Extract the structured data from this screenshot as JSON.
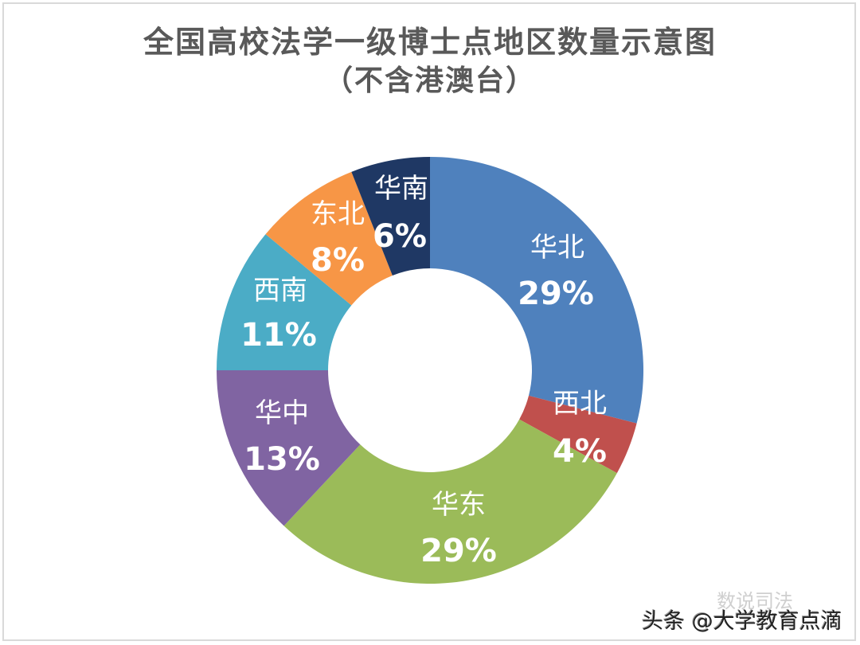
{
  "chart_data": {
    "type": "pie",
    "subtype": "donut",
    "title": "全国高校法学一级博士点地区数量示意图",
    "subtitle": "（不含港澳台）",
    "categories": [
      "华北",
      "西北",
      "华东",
      "华中",
      "西南",
      "东北",
      "华南"
    ],
    "values": [
      29,
      4,
      29,
      13,
      11,
      8,
      6
    ],
    "unit": "%",
    "colors": [
      "#4f81bd",
      "#c0504d",
      "#9bbb59",
      "#8064a2",
      "#4bacc6",
      "#f79646",
      "#1f3864"
    ],
    "start_angle": "12 o'clock, clockwise",
    "legend": "none (labels inside segments)"
  },
  "header": {
    "title": "全国高校法学一级博士点地区数量示意图",
    "subtitle": "（不含港澳台）"
  },
  "labels": [
    {
      "name": "华北",
      "pct": "29%"
    },
    {
      "name": "西北",
      "pct": "4%"
    },
    {
      "name": "华东",
      "pct": "29%"
    },
    {
      "name": "华中",
      "pct": "13%"
    },
    {
      "name": "西南",
      "pct": "11%"
    },
    {
      "name": "东北",
      "pct": "8%"
    },
    {
      "name": "华南",
      "pct": "6%"
    }
  ],
  "watermark": {
    "text": "头条 @大学教育点滴",
    "faint": "数说司法"
  }
}
